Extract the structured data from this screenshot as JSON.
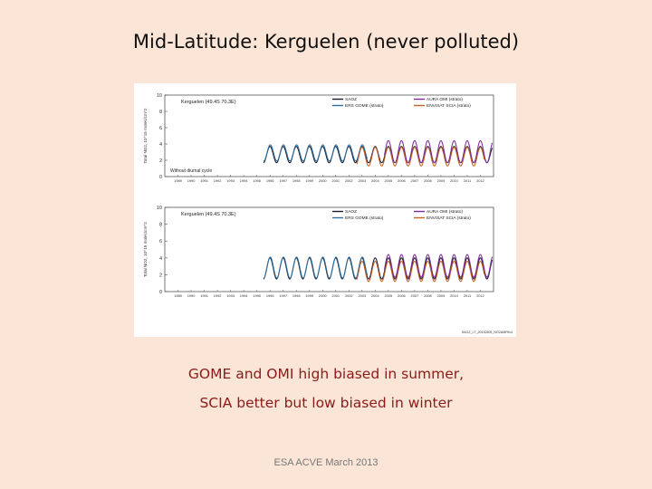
{
  "slide": {
    "title": "Mid-Latitude: Kerguelen (never polluted)",
    "caption_line1": "GOME and OMI high biased in summer,",
    "caption_line2": "SCIA better but low biased in winter",
    "footer": "ESA ACVE March 2013",
    "figure_id": "SAOZ_LT_20130305_NO2AMFfix4"
  },
  "chart_data": [
    {
      "type": "line",
      "title": "Kerguelen (49.4S 70.3E)",
      "annotation": "Without diurnal cycle",
      "ylabel": "Total NO2, 10^15 molec/cm^2",
      "xlim": [
        1988,
        2013
      ],
      "ylim": [
        0,
        10
      ],
      "yticks": [
        0,
        2,
        4,
        6,
        8,
        10
      ],
      "xticks": [
        "1989",
        "1990",
        "1991",
        "1992",
        "1993",
        "1994",
        "1995",
        "1996",
        "1997",
        "1998",
        "1999",
        "2000",
        "2001",
        "2002",
        "2003",
        "2004",
        "2005",
        "2006",
        "2007",
        "2008",
        "2009",
        "2010",
        "2011",
        "2012"
      ],
      "legend_position": "top",
      "series": [
        {
          "name": "SAOZ",
          "color": "#1a1a2e",
          "start": 1995.5,
          "end": 2012.9,
          "min": 1.7,
          "max": 3.7
        },
        {
          "name": "ERS GOME (strato)",
          "color": "#2e6f9e",
          "start": 1995.5,
          "end": 2003.4,
          "min": 1.9,
          "max": 3.9
        },
        {
          "name": "AURA OMI (strato)",
          "color": "#7b2d9a",
          "start": 2004.7,
          "end": 2012.9,
          "min": 1.7,
          "max": 4.4
        },
        {
          "name": "ENVISAT SCIA (strato)",
          "color": "#c0632a",
          "start": 2002.6,
          "end": 2012.3,
          "min": 1.3,
          "max": 3.6
        }
      ]
    },
    {
      "type": "line",
      "title": "Kerguelen (49.4S 70.3E)",
      "annotation": "",
      "ylabel": "Total NO2, 10^15 molec/cm^2",
      "xlim": [
        1988,
        2013
      ],
      "ylim": [
        0,
        10
      ],
      "yticks": [
        0,
        2,
        4,
        6,
        8,
        10
      ],
      "xticks": [
        "1989",
        "1990",
        "1991",
        "1992",
        "1993",
        "1994",
        "1995",
        "1996",
        "1997",
        "1998",
        "1999",
        "2000",
        "2001",
        "2002",
        "2003",
        "2004",
        "2005",
        "2006",
        "2007",
        "2008",
        "2009",
        "2010",
        "2011",
        "2012"
      ],
      "legend_position": "top",
      "series": [
        {
          "name": "SAOZ",
          "color": "#1a1a2e",
          "start": 1995.5,
          "end": 2012.9,
          "min": 1.5,
          "max": 4.0
        },
        {
          "name": "ERS GOME (strato)",
          "color": "#2e6f9e",
          "start": 1995.5,
          "end": 2003.4,
          "min": 1.6,
          "max": 4.1
        },
        {
          "name": "AURA OMI (strato)",
          "color": "#7b2d9a",
          "start": 2004.7,
          "end": 2012.9,
          "min": 1.7,
          "max": 4.4
        },
        {
          "name": "ENVISAT SCIA (strato)",
          "color": "#c0632a",
          "start": 2002.6,
          "end": 2012.3,
          "min": 1.2,
          "max": 3.6
        }
      ]
    }
  ]
}
